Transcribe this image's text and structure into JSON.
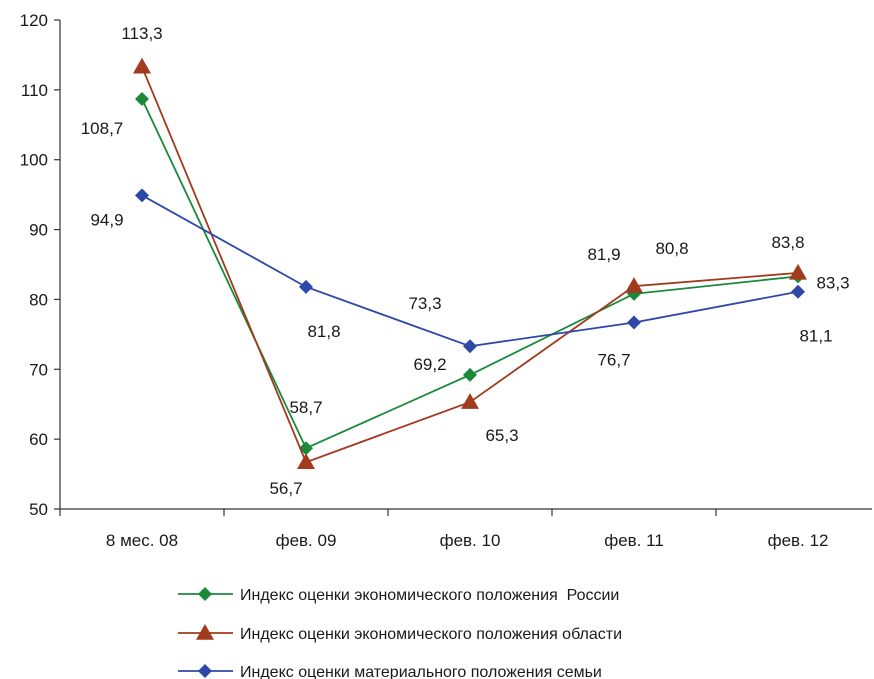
{
  "chart_data": {
    "type": "line",
    "categories": [
      "8 мес. 08",
      "фев. 09",
      "фев. 10",
      "фев. 11",
      "фев. 12"
    ],
    "ylim": [
      50,
      120
    ],
    "yticks": [
      "50",
      "60",
      "70",
      "80",
      "90",
      "100",
      "110",
      "120"
    ],
    "grid": false,
    "legend_position": "bottom",
    "series": [
      {
        "name": "Индекс оценки экономического положения  России",
        "color": "#1a8a3a",
        "marker": "diamond",
        "values": [
          108.7,
          58.7,
          69.2,
          80.8,
          83.3
        ],
        "labels": [
          "108,7",
          "58,7",
          "69,2",
          "80,8",
          "83,3"
        ]
      },
      {
        "name": "Индекс оценки экономического положения области",
        "color": "#a23a1e",
        "marker": "triangle",
        "values": [
          113.3,
          56.7,
          65.3,
          81.9,
          83.8
        ],
        "labels": [
          "113,3",
          "56,7",
          "65,3",
          "81,9",
          "83,8"
        ]
      },
      {
        "name": "Индекс оценки материального положения семьи",
        "color": "#2e48a8",
        "marker": "diamond",
        "values": [
          94.9,
          81.8,
          73.3,
          76.7,
          81.1
        ],
        "labels": [
          "94,9",
          "81,8",
          "73,3",
          "76,7",
          "81,1"
        ]
      }
    ]
  }
}
